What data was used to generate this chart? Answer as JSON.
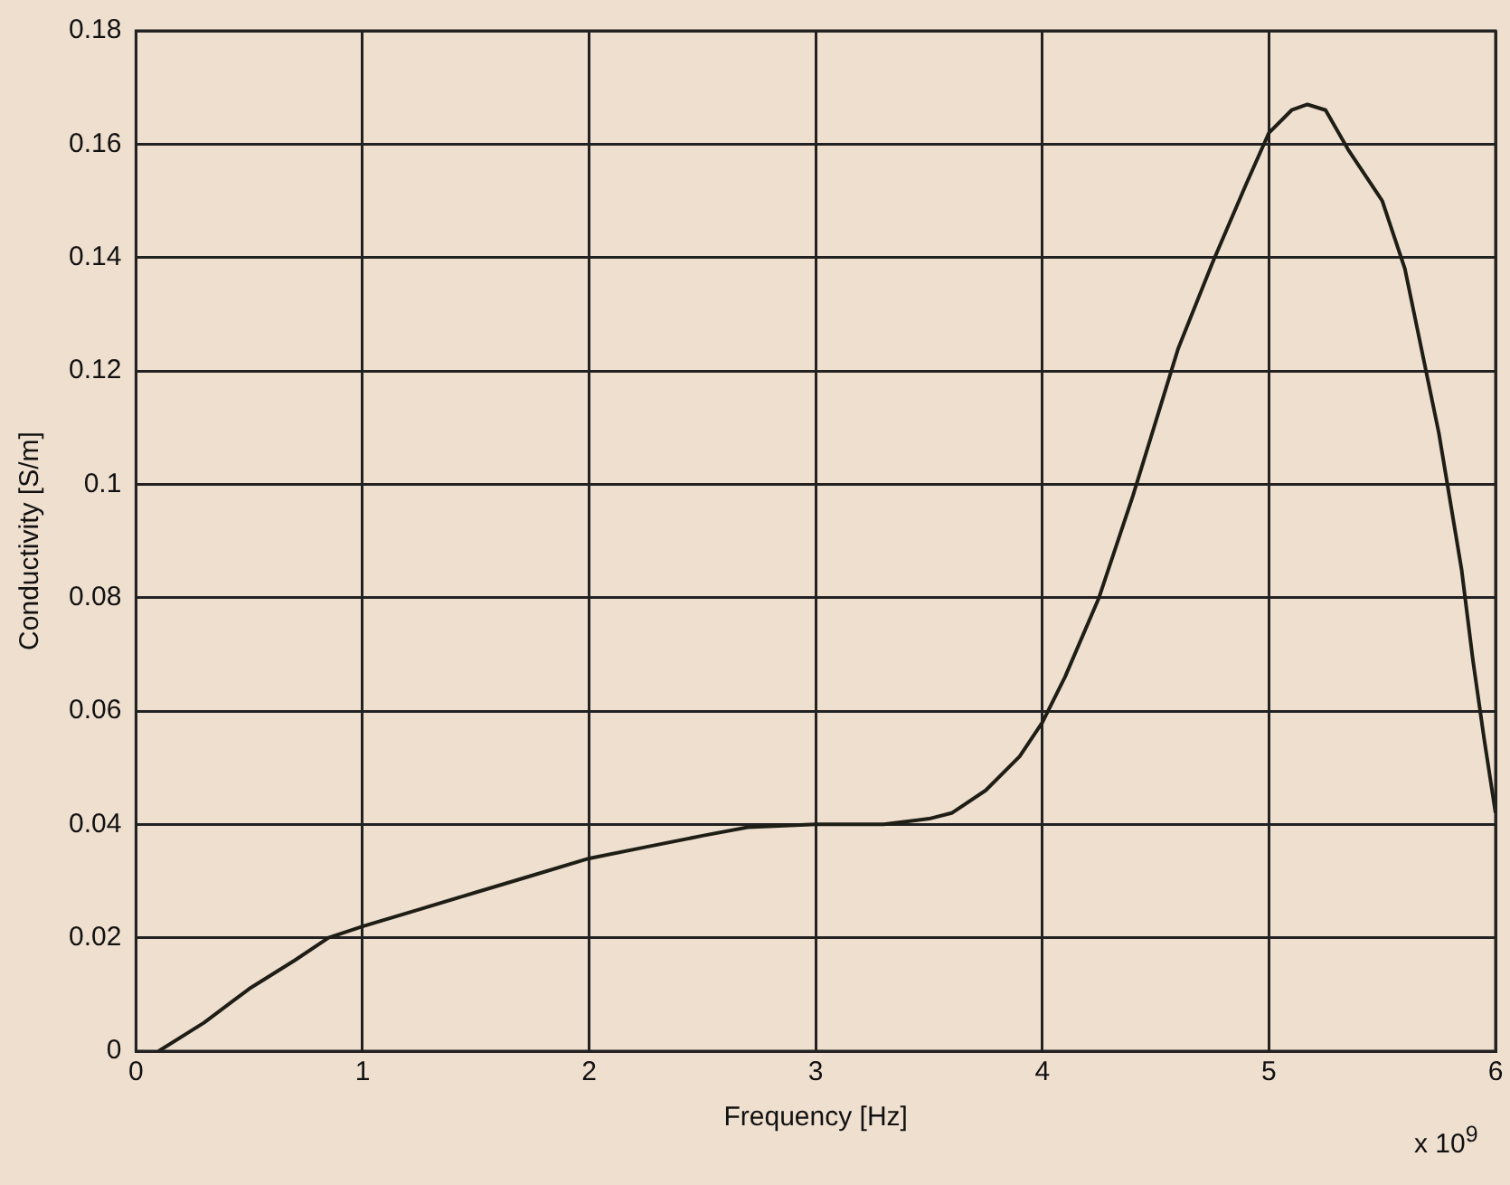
{
  "chart_data": {
    "type": "line",
    "xlabel": "Frequency [Hz]",
    "ylabel": "Conductivity [S/m]",
    "annotations": [
      "x 10$^{9}$"
    ],
    "x": [
      0.1,
      0.3,
      0.5,
      0.7,
      0.85,
      1,
      1.25,
      1.5,
      1.75,
      2,
      2.25,
      2.5,
      2.7,
      3,
      3.3,
      3.5,
      3.6,
      3.75,
      3.9,
      4,
      4.1,
      4.25,
      4.4,
      4.5,
      4.6,
      4.75,
      4.9,
      5,
      5.1,
      5.17,
      5.25,
      5.35,
      5.5,
      5.6,
      5.75,
      5.85,
      5.9,
      5.95,
      6
    ],
    "series": [
      {
        "color": "#1e1e16",
        "values": [
          0,
          0.005,
          0.011,
          0.016,
          0.02,
          0.022,
          0.025,
          0.028,
          0.031,
          0.034,
          0.036,
          0.038,
          0.0395,
          0.04,
          0.04,
          0.041,
          0.042,
          0.046,
          0.052,
          0.058,
          0.066,
          0.08,
          0.098,
          0.111,
          0.124,
          0.139,
          0.153,
          0.162,
          0.166,
          0.167,
          0.166,
          0.159,
          0.15,
          0.138,
          0.109,
          0.085,
          0.069,
          0.055,
          0.042
        ]
      }
    ],
    "xlim": [
      0,
      6
    ],
    "xticks": [
      0,
      1,
      2,
      3,
      4,
      5,
      6
    ],
    "ylim": [
      0,
      0.18
    ],
    "yticks": [
      0,
      0.02,
      0.04,
      0.06,
      0.08,
      0.1,
      0.12,
      0.14,
      0.16,
      0.18
    ],
    "grid": true,
    "legend": false,
    "marker": "none",
    "line_style": "solid"
  }
}
